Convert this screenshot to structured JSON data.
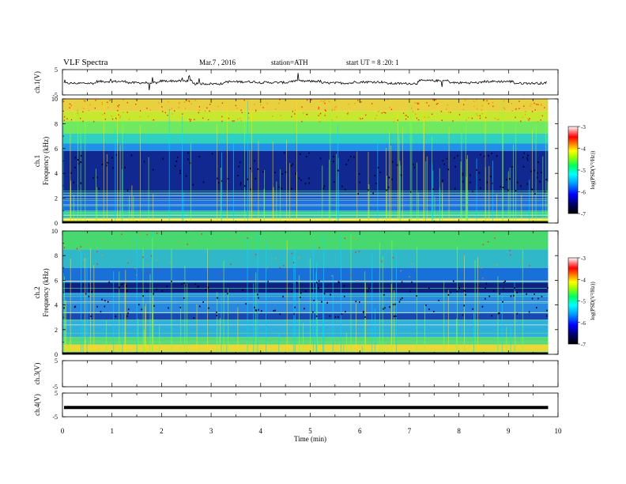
{
  "header": {
    "title": "VLF Spectra",
    "date": "Mar.7 , 2016",
    "station": "station=ATH",
    "start": "start UT = 8 :20: 1"
  },
  "chart_data": [
    {
      "type": "line",
      "panel": "ch1-waveform",
      "ylabel": "ch.1(V)",
      "ylim": [
        -5,
        5
      ],
      "yticks": [
        "5",
        "-5"
      ],
      "series": [
        {
          "values": [
            -0.4,
            0.3,
            -0.2,
            0.5,
            -0.6,
            0.2,
            -0.1,
            0.4,
            -0.3,
            0.1,
            -0.5,
            0.6,
            -0.2,
            0.3,
            -0.4,
            0.2
          ]
        }
      ]
    },
    {
      "type": "heatmap",
      "panel": "ch1-spectrogram",
      "ylabel": "ch.1",
      "ylabel2": "Frequency (kHz)",
      "ylim": [
        0,
        10
      ],
      "yticks": [
        "0",
        "2",
        "4",
        "6",
        "8",
        "10"
      ],
      "xlim": [
        0,
        10
      ],
      "colorbar": {
        "label": "log(PSD(V²/Hz))",
        "range": [
          -7,
          -3
        ],
        "ticks": [
          "-3",
          "-4",
          "-5",
          "-6",
          "-7"
        ]
      }
    },
    {
      "type": "heatmap",
      "panel": "ch2-spectrogram",
      "ylabel": "ch.2",
      "ylabel2": "Frequency (kHz)",
      "ylim": [
        0,
        10
      ],
      "yticks": [
        "0",
        "2",
        "4",
        "6",
        "8",
        "10"
      ],
      "xlim": [
        0,
        10
      ],
      "colorbar": {
        "label": "log(PSD(V²/Hz))",
        "range": [
          -7,
          -3
        ],
        "ticks": [
          "-3",
          "-4",
          "-5",
          "-6",
          "-7"
        ]
      }
    },
    {
      "type": "line",
      "panel": "ch3-waveform",
      "ylabel": "ch.3(V)",
      "ylim": [
        -5,
        5
      ],
      "yticks": [
        "5",
        "-5"
      ],
      "series": [
        {
          "values": []
        }
      ]
    },
    {
      "type": "line",
      "panel": "ch4-waveform",
      "ylabel": "ch.4(V)",
      "ylim": [
        -5,
        5
      ],
      "yticks": [
        "5",
        "-5"
      ],
      "series": [
        {
          "values": [
            -1.1,
            -1.1,
            -1.1,
            -1.1,
            -1.1,
            -1.1,
            -1.1,
            -1.1,
            -1.1,
            -1.1,
            -1.1
          ]
        }
      ]
    }
  ],
  "xaxis": {
    "label": "Time (min)",
    "ticks": [
      "0",
      "1",
      "2",
      "3",
      "4",
      "5",
      "6",
      "7",
      "8",
      "9",
      "10"
    ],
    "xlim": [
      0,
      10
    ],
    "data_end": 9.8
  },
  "colormap": [
    "#000000",
    "#000040",
    "#0000a0",
    "#0040ff",
    "#00a0ff",
    "#00ffff",
    "#00ff80",
    "#80ff00",
    "#ffff00",
    "#ff8000",
    "#ff0000",
    "#ff8080",
    "#ffffff"
  ]
}
